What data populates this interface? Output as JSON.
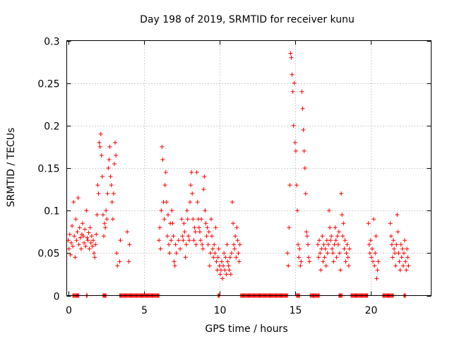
{
  "chart_data": {
    "type": "scatter",
    "title": "Day 198 of 2019, SRMTID for receiver kunu",
    "xlabel": "GPS time / hours",
    "ylabel": "SRMTID / TECUs",
    "xlim": [
      -0.1,
      24
    ],
    "ylim": [
      0,
      0.3
    ],
    "x_ticks": [
      0,
      5,
      10,
      15,
      20
    ],
    "x_tick_labels": [
      "0",
      "5",
      "10",
      "15",
      "20"
    ],
    "y_ticks": [
      0,
      0.05,
      0.1,
      0.15,
      0.2,
      0.25,
      0.3
    ],
    "y_tick_labels": [
      "0",
      "0.05",
      "0.1",
      "0.15",
      "0.2",
      "0.25",
      "0.3"
    ],
    "grid": true,
    "marker": "plus",
    "color": "#ff0000",
    "series": [
      {
        "name": "SRMTID",
        "points": [
          [
            0.0,
            0.065
          ],
          [
            0.05,
            0.055
          ],
          [
            0.1,
            0.072
          ],
          [
            0.15,
            0.048
          ],
          [
            0.2,
            0.062
          ],
          [
            0.25,
            0.082
          ],
          [
            0.3,
            0.058
          ],
          [
            0.35,
            0.11
          ],
          [
            0.4,
            0.07
          ],
          [
            0.45,
            0.045
          ],
          [
            0.5,
            0.09
          ],
          [
            0.55,
            0.065
          ],
          [
            0.6,
            0.075
          ],
          [
            0.65,
            0.115
          ],
          [
            0.7,
            0.06
          ],
          [
            0.75,
            0.08
          ],
          [
            0.8,
            0.068
          ],
          [
            0.85,
            0.055
          ],
          [
            0.9,
            0.072
          ],
          [
            0.95,
            0.085
          ],
          [
            1.0,
            0.07
          ],
          [
            1.05,
            0.062
          ],
          [
            1.1,
            0.078
          ],
          [
            1.15,
            0.058
          ],
          [
            1.2,
            0.1
          ],
          [
            1.25,
            0.068
          ],
          [
            1.3,
            0.065
          ],
          [
            1.35,
            0.074
          ],
          [
            1.4,
            0.055
          ],
          [
            1.45,
            0.08
          ],
          [
            1.5,
            0.062
          ],
          [
            1.55,
            0.07
          ],
          [
            1.6,
            0.058
          ],
          [
            1.65,
            0.065
          ],
          [
            1.7,
            0.05
          ],
          [
            1.75,
            0.045
          ],
          [
            1.8,
            0.06
          ],
          [
            1.85,
            0.072
          ],
          [
            1.9,
            0.095
          ],
          [
            1.95,
            0.13
          ],
          [
            2.0,
            0.12
          ],
          [
            2.05,
            0.18
          ],
          [
            2.1,
            0.175
          ],
          [
            2.15,
            0.19
          ],
          [
            2.2,
            0.165
          ],
          [
            2.25,
            0.14
          ],
          [
            2.3,
            0.095
          ],
          [
            2.35,
            0.07
          ],
          [
            2.4,
            0.085
          ],
          [
            2.45,
            0.08
          ],
          [
            2.5,
            0.1
          ],
          [
            2.55,
            0.09
          ],
          [
            2.6,
            0.12
          ],
          [
            2.65,
            0.15
          ],
          [
            2.7,
            0.16
          ],
          [
            2.75,
            0.175
          ],
          [
            2.8,
            0.14
          ],
          [
            2.85,
            0.13
          ],
          [
            2.9,
            0.11
          ],
          [
            2.95,
            0.09
          ],
          [
            3.0,
            0.12
          ],
          [
            3.05,
            0.155
          ],
          [
            3.1,
            0.18
          ],
          [
            3.15,
            0.165
          ],
          [
            3.2,
            0.05
          ],
          [
            3.25,
            0.035
          ],
          [
            3.4,
            0.04
          ],
          [
            3.45,
            0.065
          ],
          [
            3.9,
            0.075
          ],
          [
            4.0,
            0.04
          ],
          [
            4.05,
            0.06
          ],
          [
            6.0,
            0.065
          ],
          [
            6.05,
            0.08
          ],
          [
            6.1,
            0.055
          ],
          [
            6.15,
            0.1
          ],
          [
            6.2,
            0.175
          ],
          [
            6.25,
            0.16
          ],
          [
            6.3,
            0.11
          ],
          [
            6.35,
            0.09
          ],
          [
            6.4,
            0.13
          ],
          [
            6.45,
            0.145
          ],
          [
            6.5,
            0.11
          ],
          [
            6.55,
            0.07
          ],
          [
            6.6,
            0.095
          ],
          [
            6.65,
            0.06
          ],
          [
            6.7,
            0.05
          ],
          [
            6.75,
            0.085
          ],
          [
            6.8,
            0.065
          ],
          [
            6.85,
            0.1
          ],
          [
            6.9,
            0.085
          ],
          [
            6.95,
            0.07
          ],
          [
            7.0,
            0.04
          ],
          [
            7.05,
            0.035
          ],
          [
            7.1,
            0.06
          ],
          [
            7.15,
            0.05
          ],
          [
            7.3,
            0.065
          ],
          [
            7.4,
            0.055
          ],
          [
            7.5,
            0.09
          ],
          [
            7.55,
            0.07
          ],
          [
            7.6,
            0.065
          ],
          [
            7.65,
            0.085
          ],
          [
            7.7,
            0.075
          ],
          [
            7.75,
            0.045
          ],
          [
            7.8,
            0.06
          ],
          [
            7.85,
            0.1
          ],
          [
            7.9,
            0.09
          ],
          [
            7.95,
            0.07
          ],
          [
            8.0,
            0.065
          ],
          [
            8.05,
            0.11
          ],
          [
            8.1,
            0.13
          ],
          [
            8.15,
            0.145
          ],
          [
            8.2,
            0.12
          ],
          [
            8.25,
            0.09
          ],
          [
            8.3,
            0.065
          ],
          [
            8.35,
            0.08
          ],
          [
            8.4,
            0.075
          ],
          [
            8.45,
            0.06
          ],
          [
            8.5,
            0.145
          ],
          [
            8.55,
            0.11
          ],
          [
            8.6,
            0.09
          ],
          [
            8.65,
            0.08
          ],
          [
            8.7,
            0.075
          ],
          [
            8.75,
            0.065
          ],
          [
            8.8,
            0.09
          ],
          [
            8.85,
            0.06
          ],
          [
            8.9,
            0.055
          ],
          [
            8.95,
            0.125
          ],
          [
            9.0,
            0.14
          ],
          [
            9.05,
            0.1
          ],
          [
            9.1,
            0.085
          ],
          [
            9.15,
            0.07
          ],
          [
            9.2,
            0.08
          ],
          [
            9.25,
            0.06
          ],
          [
            9.3,
            0.075
          ],
          [
            9.35,
            0.035
          ],
          [
            9.4,
            0.05
          ],
          [
            9.45,
            0.09
          ],
          [
            9.5,
            0.07
          ],
          [
            9.55,
            0.055
          ],
          [
            9.6,
            0.045
          ],
          [
            9.65,
            0.06
          ],
          [
            9.7,
            0.05
          ],
          [
            9.75,
            0.08
          ],
          [
            9.8,
            0.04
          ],
          [
            9.85,
            0.03
          ],
          [
            9.9,
            0.045
          ],
          [
            9.95,
            0.055
          ],
          [
            10.0,
            0.035
          ],
          [
            10.05,
            0.025
          ],
          [
            10.1,
            0.03
          ],
          [
            10.15,
            0.04
          ],
          [
            10.2,
            0.02
          ],
          [
            10.25,
            0.035
          ],
          [
            10.3,
            0.05
          ],
          [
            10.35,
            0.03
          ],
          [
            10.4,
            0.045
          ],
          [
            10.45,
            0.025
          ],
          [
            10.5,
            0.06
          ],
          [
            10.55,
            0.04
          ],
          [
            10.6,
            0.035
          ],
          [
            10.65,
            0.03
          ],
          [
            10.7,
            0.045
          ],
          [
            10.75,
            0.025
          ],
          [
            10.8,
            0.05
          ],
          [
            10.85,
            0.11
          ],
          [
            10.9,
            0.085
          ],
          [
            10.95,
            0.06
          ],
          [
            11.0,
            0.055
          ],
          [
            11.05,
            0.07
          ],
          [
            11.1,
            0.045
          ],
          [
            11.15,
            0.08
          ],
          [
            11.2,
            0.065
          ],
          [
            11.25,
            0.05
          ],
          [
            11.3,
            0.04
          ],
          [
            11.35,
            0.06
          ],
          [
            14.5,
            0.05
          ],
          [
            14.55,
            0.035
          ],
          [
            14.6,
            0.08
          ],
          [
            14.65,
            0.13
          ],
          [
            14.7,
            0.285
          ],
          [
            14.75,
            0.28
          ],
          [
            14.8,
            0.26
          ],
          [
            14.85,
            0.24
          ],
          [
            14.9,
            0.2
          ],
          [
            14.95,
            0.25
          ],
          [
            15.0,
            0.18
          ],
          [
            15.05,
            0.17
          ],
          [
            15.1,
            0.13
          ],
          [
            15.15,
            0.1
          ],
          [
            15.2,
            0.06
          ],
          [
            15.25,
            0.045
          ],
          [
            15.3,
            0.055
          ],
          [
            15.35,
            0.035
          ],
          [
            15.4,
            0.04
          ],
          [
            15.45,
            0.24
          ],
          [
            15.5,
            0.22
          ],
          [
            15.55,
            0.195
          ],
          [
            15.6,
            0.17
          ],
          [
            15.65,
            0.15
          ],
          [
            15.7,
            0.12
          ],
          [
            15.75,
            0.075
          ],
          [
            15.8,
            0.07
          ],
          [
            15.85,
            0.06
          ],
          [
            15.9,
            0.045
          ],
          [
            15.95,
            0.04
          ],
          [
            16.5,
            0.06
          ],
          [
            16.55,
            0.045
          ],
          [
            16.6,
            0.065
          ],
          [
            16.65,
            0.05
          ],
          [
            16.7,
            0.03
          ],
          [
            16.75,
            0.055
          ],
          [
            16.8,
            0.07
          ],
          [
            16.85,
            0.04
          ],
          [
            16.9,
            0.06
          ],
          [
            16.95,
            0.045
          ],
          [
            17.0,
            0.055
          ],
          [
            17.05,
            0.035
          ],
          [
            17.1,
            0.065
          ],
          [
            17.15,
            0.05
          ],
          [
            17.2,
            0.06
          ],
          [
            17.25,
            0.1
          ],
          [
            17.3,
            0.08
          ],
          [
            17.35,
            0.065
          ],
          [
            17.4,
            0.07
          ],
          [
            17.45,
            0.055
          ],
          [
            17.5,
            0.05
          ],
          [
            17.55,
            0.04
          ],
          [
            17.6,
            0.06
          ],
          [
            17.65,
            0.08
          ],
          [
            17.7,
            0.065
          ],
          [
            17.75,
            0.045
          ],
          [
            17.8,
            0.07
          ],
          [
            17.85,
            0.06
          ],
          [
            17.9,
            0.075
          ],
          [
            17.95,
            0.05
          ],
          [
            18.0,
            0.03
          ],
          [
            18.05,
            0.12
          ],
          [
            18.1,
            0.095
          ],
          [
            18.15,
            0.07
          ],
          [
            18.2,
            0.085
          ],
          [
            18.25,
            0.055
          ],
          [
            18.3,
            0.065
          ],
          [
            18.35,
            0.04
          ],
          [
            18.4,
            0.05
          ],
          [
            18.45,
            0.06
          ],
          [
            18.5,
            0.045
          ],
          [
            18.55,
            0.035
          ],
          [
            18.6,
            0.055
          ],
          [
            19.85,
            0.085
          ],
          [
            19.9,
            0.06
          ],
          [
            19.95,
            0.05
          ],
          [
            20.0,
            0.065
          ],
          [
            20.05,
            0.045
          ],
          [
            20.1,
            0.055
          ],
          [
            20.15,
            0.04
          ],
          [
            20.2,
            0.09
          ],
          [
            20.25,
            0.035
          ],
          [
            20.3,
            0.05
          ],
          [
            20.35,
            0.07
          ],
          [
            20.4,
            0.02
          ],
          [
            20.45,
            0.03
          ],
          [
            20.5,
            0.04
          ],
          [
            21.3,
            0.085
          ],
          [
            21.35,
            0.07
          ],
          [
            21.4,
            0.06
          ],
          [
            21.45,
            0.045
          ],
          [
            21.5,
            0.065
          ],
          [
            21.55,
            0.055
          ],
          [
            21.6,
            0.05
          ],
          [
            21.65,
            0.035
          ],
          [
            21.7,
            0.06
          ],
          [
            21.75,
            0.095
          ],
          [
            21.8,
            0.075
          ],
          [
            21.85,
            0.05
          ],
          [
            21.9,
            0.04
          ],
          [
            21.95,
            0.03
          ],
          [
            22.0,
            0.06
          ],
          [
            22.05,
            0.045
          ],
          [
            22.1,
            0.055
          ],
          [
            22.15,
            0.035
          ],
          [
            22.2,
            0.05
          ],
          [
            22.25,
            0.065
          ],
          [
            22.3,
            0.04
          ],
          [
            22.35,
            0.03
          ],
          [
            22.4,
            0.055
          ],
          [
            22.45,
            0.045
          ],
          [
            22.5,
            0.035
          ]
        ],
        "zero_segments": [
          [
            0.3,
            0.7
          ],
          [
            1.2,
            1.25
          ],
          [
            2.3,
            2.5
          ],
          [
            3.4,
            6.0
          ],
          [
            9.9,
            10.0
          ],
          [
            11.4,
            14.5
          ],
          [
            15.1,
            15.3
          ],
          [
            16.0,
            16.6
          ],
          [
            17.9,
            18.1
          ],
          [
            18.7,
            19.8
          ],
          [
            20.8,
            21.5
          ],
          [
            22.2,
            22.3
          ]
        ]
      }
    ]
  }
}
